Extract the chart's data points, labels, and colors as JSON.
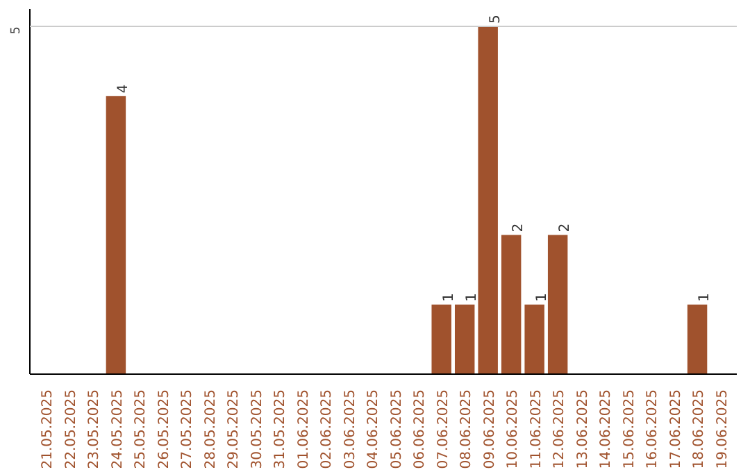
{
  "chart_data": {
    "type": "bar",
    "categories": [
      "21.05.2025",
      "22.05.2025",
      "23.05.2025",
      "24.05.2025",
      "25.05.2025",
      "26.05.2025",
      "27.05.2025",
      "28.05.2025",
      "29.05.2025",
      "30.05.2025",
      "31.05.2025",
      "01.06.2025",
      "02.06.2025",
      "03.06.2025",
      "04.06.2025",
      "05.06.2025",
      "06.06.2025",
      "07.06.2025",
      "08.06.2025",
      "09.06.2025",
      "10.06.2025",
      "11.06.2025",
      "12.06.2025",
      "13.06.2025",
      "14.06.2025",
      "15.06.2025",
      "16.06.2025",
      "17.06.2025",
      "18.06.2025",
      "19.06.2025"
    ],
    "values": [
      0,
      0,
      0,
      4,
      0,
      0,
      0,
      0,
      0,
      0,
      0,
      0,
      0,
      0,
      0,
      0,
      0,
      1,
      1,
      5,
      2,
      1,
      2,
      0,
      0,
      0,
      0,
      0,
      1,
      0
    ],
    "value_labels": [
      null,
      null,
      null,
      "4",
      null,
      null,
      null,
      null,
      null,
      null,
      null,
      null,
      null,
      null,
      null,
      null,
      null,
      "1",
      "1",
      "5",
      "2",
      "1",
      "2",
      null,
      null,
      null,
      null,
      null,
      "1",
      null
    ],
    "color": "#a0522d",
    "ref_lines": [
      {
        "axis": "y",
        "value": 5,
        "label": "5",
        "color": "#cccccc"
      }
    ]
  }
}
